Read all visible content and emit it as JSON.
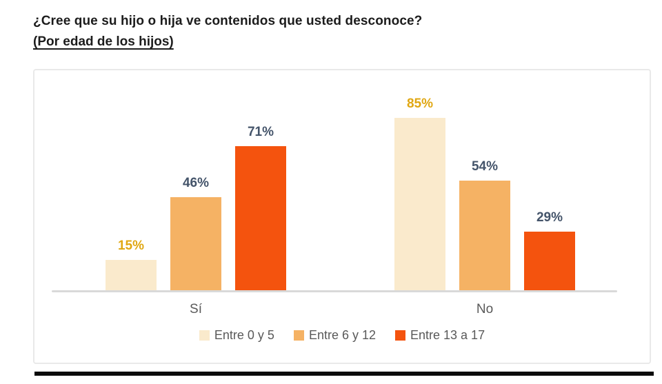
{
  "chart_data": {
    "type": "bar",
    "title": "¿Cree que su hijo o hija ve contenidos que usted desconoce?",
    "subtitle": "(Por edad de los hijos)",
    "categories": [
      "Sí",
      "No"
    ],
    "series": [
      {
        "name": "Entre 0 y 5",
        "values": [
          15,
          85
        ],
        "color": "#FAEACC",
        "label_color": "#E0A712"
      },
      {
        "name": "Entre 6 y 12",
        "values": [
          46,
          54
        ],
        "color": "#F5B264",
        "label_color": "#44546A"
      },
      {
        "name": "Entre 13 a 17",
        "values": [
          71,
          29
        ],
        "color": "#F4530E",
        "label_color": "#44546A"
      }
    ],
    "value_suffix": "%",
    "ylim": [
      0,
      100
    ],
    "grid": false,
    "legend_position": "bottom",
    "axis_label_color": "#595959",
    "legend_text_color": "#595959",
    "baseline_color": "#D9D9D9",
    "frame_border_color": "#E9E9E9"
  }
}
